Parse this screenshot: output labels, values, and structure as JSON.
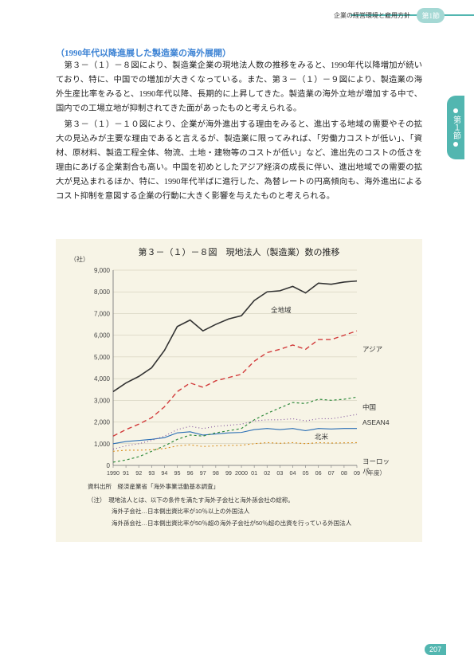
{
  "header": {
    "breadcrumb": "企業の経営環境と雇用方針",
    "section_tag": "第1節"
  },
  "side_tab": "第１節",
  "subheading": "（1990年代以降進展した製造業の海外展開）",
  "para1": "　第３－（１）－８図により、製造業企業の現地法人数の推移をみると、1990年代以降増加が続いており、特に、中国での増加が大きくなっている。また、第３－（１）－９図により、製造業の海外生産比率をみると、1990年代以降、長期的に上昇してきた。製造業の海外立地が増加する中で、国内での工場立地が抑制されてきた面があったものと考えられる。",
  "para2": "　第３－（１）－１０図により、企業が海外進出する理由をみると、進出する地域の需要やその拡大の見込みが主要な理由であると言えるが、製造業に限ってみれば、「労働力コストが低い」、「資材、原材料、製造工程全体、物流、土地・建物等のコストが低い」など、進出先のコストの低さを理由にあげる企業割合も高い。中国を初めとしたアジア経済の成長に伴い、進出地域での需要の拡大が見込まれるほか、特に、1990年代半ばに進行した、為替レートの円高傾向も、海外進出によるコスト抑制を意図する企業の行動に大きく影響を与えたものと考えられる。",
  "chart": {
    "title": "第３－（１）－８図　現地法人（製造業）数の推移",
    "y_unit": "（社）",
    "y_ticks": [
      0,
      1000,
      2000,
      3000,
      4000,
      5000,
      6000,
      7000,
      8000,
      9000
    ],
    "x_ticks": [
      "1990",
      "91",
      "92",
      "93",
      "94",
      "95",
      "96",
      "97",
      "98",
      "99",
      "2000",
      "01",
      "02",
      "03",
      "04",
      "05",
      "06",
      "07",
      "08",
      "09",
      "（年度）"
    ],
    "series": [
      {
        "name": "全地域",
        "color": "#333333",
        "dash": "",
        "width": 1.6,
        "values": [
          3400,
          3800,
          4100,
          4500,
          5300,
          6400,
          6700,
          6200,
          6500,
          6750,
          6900,
          7600,
          8000,
          8050,
          8250,
          7950,
          8400,
          8350,
          8450,
          8500
        ]
      },
      {
        "name": "アジア",
        "color": "#d23b3b",
        "dash": "6,4",
        "width": 1.4,
        "values": [
          1350,
          1650,
          1900,
          2200,
          2700,
          3400,
          3800,
          3600,
          3900,
          4050,
          4200,
          4800,
          5200,
          5350,
          5550,
          5350,
          5800,
          5800,
          6000,
          6200
        ]
      },
      {
        "name": "北米",
        "color": "#2b6fb5",
        "dash": "",
        "width": 1.1,
        "values": [
          1000,
          1100,
          1150,
          1200,
          1280,
          1500,
          1550,
          1400,
          1450,
          1500,
          1520,
          1650,
          1700,
          1650,
          1700,
          1600,
          1700,
          1680,
          1700,
          1700
        ]
      },
      {
        "name": "中国",
        "color": "#2f8a3c",
        "dash": "3,3",
        "width": 1.2,
        "values": [
          150,
          250,
          400,
          650,
          900,
          1200,
          1400,
          1350,
          1500,
          1600,
          1700,
          2100,
          2400,
          2650,
          2900,
          2850,
          3050,
          3000,
          3050,
          3150
        ]
      },
      {
        "name": "ASEAN4",
        "color": "#7c4d9a",
        "dash": "1,3",
        "width": 1.1,
        "values": [
          750,
          900,
          1000,
          1150,
          1350,
          1650,
          1800,
          1700,
          1800,
          1850,
          1900,
          2050,
          2100,
          2100,
          2150,
          2050,
          2150,
          2150,
          2250,
          2350
        ]
      },
      {
        "name": "ヨーロッパ",
        "color": "#d98f1f",
        "dash": "2,3",
        "width": 1.1,
        "values": [
          650,
          700,
          700,
          720,
          780,
          900,
          950,
          870,
          900,
          920,
          930,
          1000,
          1050,
          1020,
          1050,
          1000,
          1050,
          1030,
          1040,
          1050
        ]
      }
    ],
    "series_labels": {
      "全地域": {
        "x": 230,
        "y": 54
      },
      "アジア": {
        "x": 345,
        "y": 103
      },
      "北米": {
        "x": 285,
        "y": 213
      },
      "中国": {
        "x": 345,
        "y": 176
      },
      "ASEAN4": {
        "x": 345,
        "y": 196
      },
      "ヨーロッパ": {
        "x": 345,
        "y": 244
      }
    },
    "source": "資料出所　経済産業省「海外事業活動基本調査」",
    "notes": [
      "（注）　現地法人とは、以下の条件を満たす海外子会社と海外孫会社の総称。",
      "　　　　海外子会社…日本側出資比率が10％以上の外国法人",
      "　　　　海外孫会社…日本側出資比率が50％超の海外子会社が50％超の出資を行っている外国法人"
    ]
  },
  "page_number": "207",
  "style": {
    "accent": "#52b6b0",
    "link_blue": "#3b82d4",
    "chart_bg": "#f7f4e6"
  }
}
